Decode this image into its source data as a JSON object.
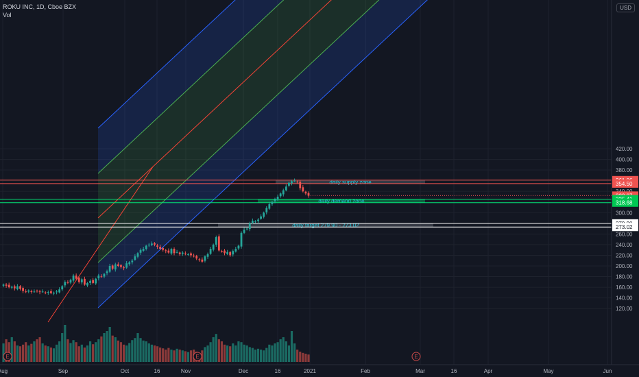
{
  "header": {
    "symbol_line": "ROKU INC, 1D, Cboe BZX",
    "vol_label": "Vol"
  },
  "currency": "USD",
  "colors": {
    "background": "#131722",
    "grid": "#1e222d",
    "up": "#26a69a",
    "down": "#ef5350",
    "vol_up": "#1b6b63",
    "vol_down": "#8b3a3a",
    "channel_outer": "#2962ff",
    "channel_mid": "#4caf50",
    "center_line": "#f44336",
    "supply": "#ef5350",
    "demand": "#00e676",
    "target": "#ffffff"
  },
  "chart_data": {
    "type": "candlestick",
    "y_ticks": [
      120,
      140,
      160,
      180,
      200,
      220,
      240,
      260,
      280,
      300,
      320,
      340,
      360,
      380,
      400,
      420
    ],
    "x_ticks": [
      "Aug",
      "Sep",
      "Oct",
      "16",
      "Nov",
      "Dec",
      "16",
      "2021",
      "Feb",
      "Mar",
      "16",
      "Apr",
      "May",
      "Jun"
    ],
    "price_labels": [
      {
        "text": "361.06",
        "value": 361.06,
        "kind": "supply"
      },
      {
        "text": "354.50",
        "value": 354.5,
        "kind": "supply"
      },
      {
        "text": "332.07",
        "value": 332.07,
        "kind": "last"
      },
      {
        "text": "325.41",
        "value": 325.41,
        "kind": "demand"
      },
      {
        "text": "318.68",
        "value": 318.68,
        "kind": "demand"
      },
      {
        "text": "279.90",
        "value": 279.9,
        "kind": "target"
      },
      {
        "text": "273.02",
        "value": 273.02,
        "kind": "target"
      }
    ],
    "zones": [
      {
        "label": "daily supply zone",
        "top": 361.06,
        "bottom": 354.5,
        "kind": "supply"
      },
      {
        "label": "daily demand zone",
        "top": 325.41,
        "bottom": 318.68,
        "kind": "demand"
      },
      {
        "label": "daily target 279.90 - 273.02",
        "top": 279.9,
        "bottom": 273.02,
        "kind": "target"
      }
    ],
    "closes": [
      165,
      163,
      160,
      161,
      158,
      162,
      157,
      153,
      151,
      154,
      152,
      152,
      153,
      151,
      152,
      150,
      151,
      149,
      150,
      152,
      156,
      162,
      170,
      168,
      174,
      182,
      176,
      170,
      175,
      165,
      168,
      172,
      168,
      176,
      182,
      180,
      185,
      190,
      200,
      195,
      203,
      200,
      198,
      196,
      205,
      207,
      210,
      218,
      224,
      230,
      232,
      238,
      240,
      242,
      240,
      236,
      232,
      230,
      228,
      225,
      232,
      224,
      226,
      222,
      225,
      222,
      222,
      220,
      218,
      214,
      212,
      208,
      218,
      222,
      232,
      240,
      254,
      229,
      228,
      224,
      226,
      220,
      228,
      232,
      238,
      262,
      268,
      270,
      280,
      285,
      284,
      287,
      293,
      300,
      309,
      316,
      320,
      325,
      330,
      336,
      342,
      349,
      356,
      359,
      360,
      358,
      346,
      340,
      336,
      332
    ],
    "volume": [
      45,
      55,
      48,
      60,
      50,
      40,
      38,
      42,
      48,
      40,
      44,
      50,
      55,
      60,
      45,
      40,
      38,
      35,
      33,
      42,
      50,
      70,
      90,
      55,
      46,
      53,
      48,
      38,
      42,
      35,
      40,
      50,
      43,
      48,
      55,
      62,
      70,
      75,
      85,
      64,
      60,
      52,
      48,
      42,
      40,
      46,
      53,
      58,
      70,
      58,
      52,
      50,
      45,
      42,
      40,
      38,
      35,
      33,
      30,
      34,
      30,
      28,
      32,
      30,
      28,
      26,
      24,
      28,
      30,
      25,
      22,
      28,
      36,
      40,
      48,
      60,
      68,
      55,
      50,
      42,
      40,
      38,
      45,
      40,
      50,
      48,
      42,
      40,
      36,
      34,
      30,
      32,
      30,
      28,
      34,
      42,
      40,
      45,
      48,
      55,
      60,
      50,
      40,
      75,
      45,
      30,
      25,
      22,
      20,
      18
    ]
  }
}
